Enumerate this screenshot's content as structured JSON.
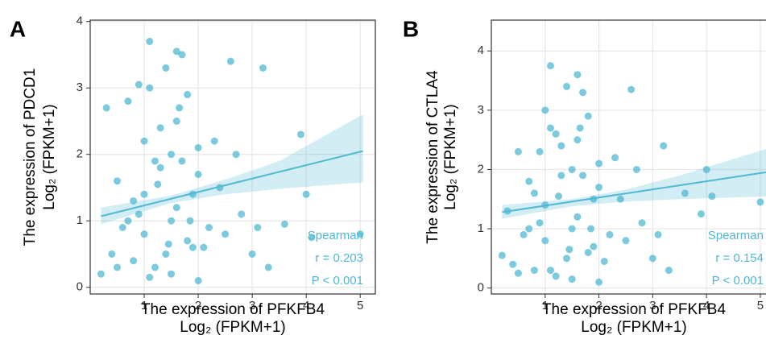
{
  "chart_data": [
    {
      "type": "scatter",
      "panel_label": "A",
      "ylabel": [
        "The expression of PDCD1",
        "Log₂ (FPKM+1)"
      ],
      "xlabel": [
        "The expression of PFKFB4",
        "Log₂ (FPKM+1)"
      ],
      "color": "#4fb8d3",
      "x": [
        0.2,
        0.3,
        0.4,
        0.5,
        0.6,
        0.7,
        0.8,
        0.9,
        1.0,
        1.1,
        1.2,
        1.3,
        1.4,
        1.5,
        1.6,
        1.7,
        1.8,
        1.9,
        2.0,
        2.1,
        0.5,
        0.8,
        1.0,
        1.2,
        1.4,
        1.6,
        1.8,
        2.0,
        2.2,
        2.4,
        1.1,
        1.3,
        1.5,
        1.7,
        1.9,
        2.3,
        2.6,
        2.8,
        3.0,
        3.2,
        1.0,
        1.5,
        2.0,
        2.5,
        3.3,
        3.6,
        3.9,
        4.0,
        4.1,
        5.0,
        0.7,
        0.9,
        1.25,
        1.45,
        1.65,
        1.85,
        2.7,
        3.1,
        1.1,
        1.6
      ],
      "y": [
        0.2,
        2.7,
        0.5,
        1.6,
        0.9,
        2.8,
        0.4,
        1.1,
        2.2,
        3.7,
        0.3,
        1.8,
        3.3,
        1.0,
        2.5,
        3.5,
        0.7,
        1.4,
        2.1,
        0.6,
        0.3,
        1.3,
        0.8,
        1.9,
        0.5,
        1.2,
        2.9,
        1.7,
        0.9,
        1.5,
        3.0,
        2.4,
        0.2,
        1.9,
        0.6,
        2.2,
        3.4,
        1.1,
        0.5,
        3.3,
        1.4,
        2.0,
        0.1,
        0.8,
        0.3,
        0.95,
        2.3,
        1.4,
        0.75,
        0.8,
        1.0,
        3.05,
        1.55,
        0.65,
        2.7,
        1.0,
        2.0,
        0.9,
        0.15,
        3.55
      ],
      "trend": {
        "x": [
          0.2,
          5.05
        ],
        "y": [
          1.07,
          2.05
        ]
      },
      "band": {
        "x": [
          0.2,
          1.5,
          2.5,
          3.5,
          5.05
        ],
        "lower": [
          0.95,
          1.27,
          1.4,
          1.48,
          1.58
        ],
        "upper": [
          1.2,
          1.38,
          1.62,
          1.9,
          2.6
        ]
      },
      "annotations": [
        "Spearman",
        "r = 0.203",
        "P < 0.001"
      ],
      "xlim": [
        0,
        5.28
      ],
      "ylim": [
        -0.1,
        4.02
      ],
      "xticks": [
        1,
        2,
        3,
        4,
        5
      ],
      "yticks": [
        0,
        1,
        2,
        3,
        4
      ],
      "grid": true
    },
    {
      "type": "scatter",
      "panel_label": "B",
      "ylabel": [
        "The expression of CTLA4",
        "Log₂ (FPKM+1)"
      ],
      "xlabel": [
        "The expression of PFKFB4",
        "Log₂ (FPKM+1)"
      ],
      "color": "#4fb8d3",
      "x": [
        0.2,
        0.3,
        0.4,
        0.5,
        0.6,
        0.7,
        0.8,
        0.9,
        1.0,
        1.1,
        1.2,
        1.3,
        1.4,
        1.5,
        1.6,
        1.7,
        1.8,
        1.9,
        2.0,
        2.1,
        0.5,
        0.8,
        1.0,
        1.2,
        1.4,
        1.6,
        1.8,
        2.0,
        2.2,
        2.4,
        1.1,
        1.3,
        1.5,
        1.7,
        1.9,
        2.3,
        2.6,
        2.8,
        3.0,
        3.2,
        1.0,
        1.5,
        2.0,
        2.5,
        3.3,
        3.6,
        3.9,
        4.0,
        4.1,
        5.0,
        0.7,
        0.9,
        1.25,
        1.45,
        1.65,
        1.85,
        2.7,
        3.1,
        1.1,
        1.6
      ],
      "y": [
        0.55,
        1.3,
        0.4,
        2.3,
        0.9,
        1.8,
        0.3,
        1.1,
        3.0,
        3.75,
        0.2,
        1.9,
        3.4,
        1.0,
        2.5,
        3.3,
        0.6,
        1.5,
        2.1,
        0.45,
        0.25,
        1.6,
        0.8,
        2.6,
        0.5,
        1.2,
        2.9,
        1.7,
        0.9,
        1.5,
        2.7,
        2.4,
        0.15,
        1.9,
        0.7,
        2.2,
        3.35,
        1.1,
        0.5,
        2.4,
        1.4,
        2.0,
        0.1,
        0.8,
        0.3,
        1.6,
        1.25,
        2.0,
        1.55,
        1.45,
        1.0,
        2.3,
        1.55,
        0.65,
        2.7,
        1.0,
        2.0,
        0.9,
        0.3,
        3.6
      ],
      "trend": {
        "x": [
          0.2,
          5.3
        ],
        "y": [
          1.28,
          1.98
        ]
      },
      "band": {
        "x": [
          0.2,
          1.5,
          2.5,
          3.5,
          5.3
        ],
        "lower": [
          1.17,
          1.38,
          1.46,
          1.5,
          1.55
        ],
        "upper": [
          1.4,
          1.5,
          1.66,
          1.9,
          2.4
        ]
      },
      "annotations": [
        "Spearman",
        "r = 0.154",
        "P < 0.001"
      ],
      "xlim": [
        0,
        5.3
      ],
      "ylim": [
        -0.1,
        4.52
      ],
      "xticks": [
        1,
        2,
        3,
        4,
        5
      ],
      "yticks": [
        0,
        1,
        2,
        3,
        4
      ],
      "grid": true
    }
  ]
}
